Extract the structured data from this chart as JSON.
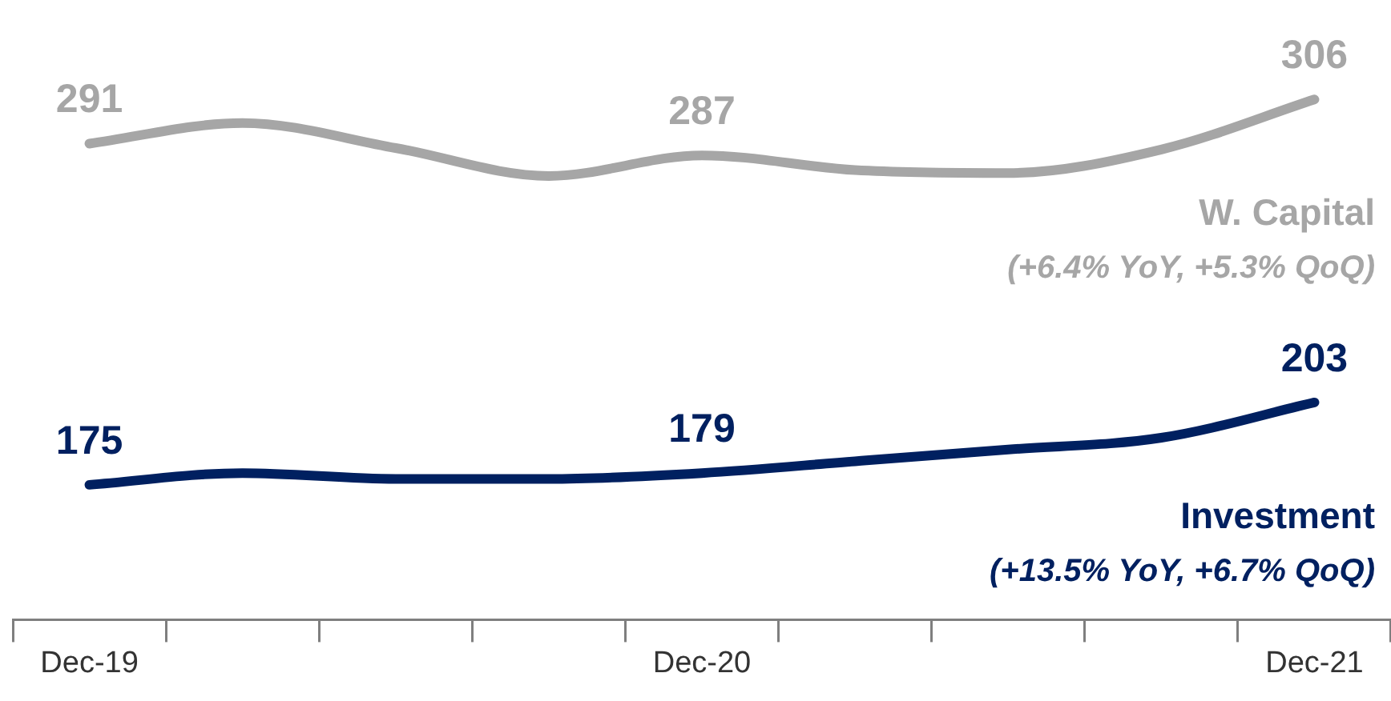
{
  "chart_data": {
    "type": "line",
    "categories": [
      "Dec-19",
      null,
      null,
      null,
      "Dec-20",
      null,
      null,
      null,
      "Dec-21"
    ],
    "series": [
      {
        "name": "W. Capital",
        "color": "#a6a6a6",
        "values": [
          291,
          298,
          289.5,
          280,
          287,
          282,
          281,
          289,
          306
        ],
        "value_labels": [
          "291",
          null,
          null,
          null,
          "287",
          null,
          null,
          null,
          "306"
        ]
      },
      {
        "name": "Investment",
        "color": "#002060",
        "values": [
          175,
          179,
          177,
          177,
          179,
          183,
          187,
          191,
          203
        ],
        "value_labels": [
          "175",
          null,
          null,
          null,
          "179",
          null,
          null,
          null,
          "203"
        ]
      }
    ],
    "annotations": [
      "(+6.4% YoY, +5.3% QoQ)",
      "(+13.5% YoY, +6.7% QoQ)"
    ],
    "tick_labels": "x",
    "legend": false,
    "grid": false,
    "marker": "none",
    "line_style": "solid"
  }
}
